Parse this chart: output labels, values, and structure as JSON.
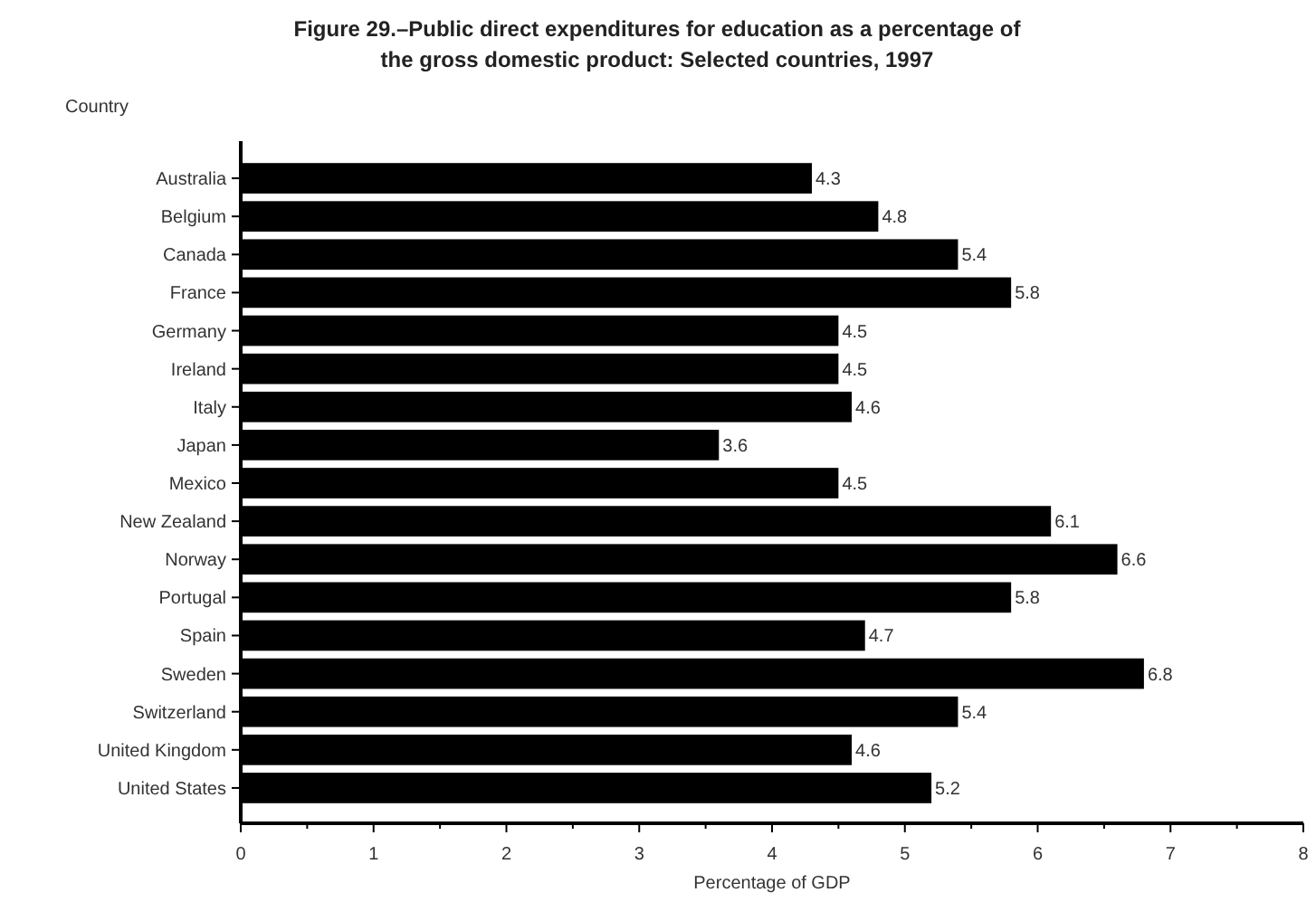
{
  "chart_data": {
    "type": "bar",
    "orientation": "horizontal",
    "title": "Figure 29.–Public direct expenditures for education as a percentage of the gross domestic product:  Selected countries, 1997",
    "ylabel": "Country",
    "xlabel": "Percentage of GDP",
    "categories": [
      "Australia",
      "Belgium",
      "Canada",
      "France",
      "Germany",
      "Ireland",
      "Italy",
      "Japan",
      "Mexico",
      "New Zealand",
      "Norway",
      "Portugal",
      "Spain",
      "Sweden",
      "Switzerland",
      "United Kingdom",
      "United States"
    ],
    "values": [
      4.3,
      4.8,
      5.4,
      5.8,
      4.5,
      4.5,
      4.6,
      3.6,
      4.5,
      6.1,
      6.6,
      5.8,
      4.7,
      6.8,
      5.4,
      4.6,
      5.2
    ],
    "color": "#000000",
    "data_labels": true,
    "xlim": [
      0,
      8
    ],
    "xticks": [
      0,
      {
        "value": 0.5,
        "label": null
      },
      1,
      {
        "value": 1.5,
        "label": null
      },
      2,
      {
        "value": 2.5,
        "label": null
      },
      3,
      {
        "value": 3.5,
        "label": null
      },
      4,
      {
        "value": 4.5,
        "label": null
      },
      5,
      {
        "value": 5.5,
        "label": null
      },
      6,
      {
        "value": 6.5,
        "label": null
      },
      7,
      {
        "value": 7.5,
        "label": null
      },
      8
    ]
  }
}
